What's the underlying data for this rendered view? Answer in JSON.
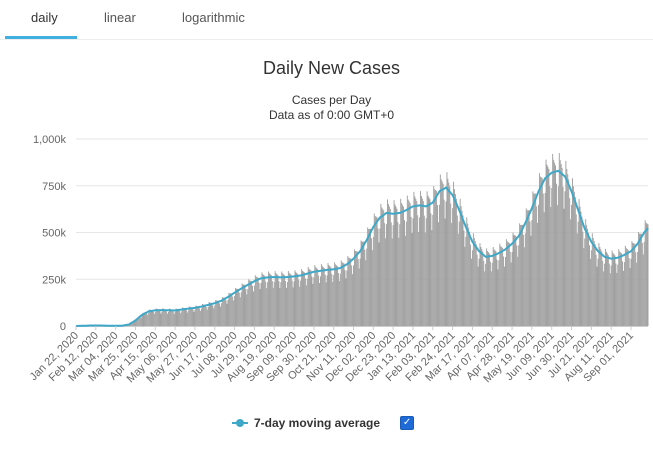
{
  "tabs": [
    {
      "label": "daily",
      "active": true
    },
    {
      "label": "linear",
      "active": false
    },
    {
      "label": "logarithmic",
      "active": false
    }
  ],
  "colors": {
    "accent": "#3fb0e0",
    "bars": "#a0a0a0",
    "line": "#3fa8c8",
    "checkbox": "#1e6ad6"
  },
  "legend": {
    "label": "7-day moving average",
    "checked": true,
    "check_glyph": "✓",
    "marker_icon": "line-dot-icon"
  },
  "chart_data": {
    "type": "bar",
    "title": "Daily New Cases",
    "subtitles": [
      "Cases per Day",
      "Data as of 0:00 GMT+0"
    ],
    "xlabel": "",
    "ylabel": "",
    "ylim": [
      0,
      1000000
    ],
    "y_ticks": [
      0,
      250000,
      500000,
      750000,
      1000000
    ],
    "y_tick_labels": [
      "0",
      "250k",
      "500k",
      "750k",
      "1,000k"
    ],
    "grid": true,
    "x_range": [
      "2020-01-22",
      "2021-09-19"
    ],
    "x_tick_labels": [
      "Jan 22, 2020",
      "Feb 12, 2020",
      "Mar 04, 2020",
      "Mar 25, 2020",
      "Apr 15, 2020",
      "May 06, 2020",
      "May 27, 2020",
      "Jun 17, 2020",
      "Jul 08, 2020",
      "Jul 29, 2020",
      "Aug 19, 2020",
      "Sep 09, 2020",
      "Sep 30, 2020",
      "Oct 21, 2020",
      "Nov 11, 2020",
      "Dec 02, 2020",
      "Dec 23, 2020",
      "Jan 13, 2021",
      "Feb 03, 2021",
      "Feb 24, 2021",
      "Mar 17, 2021",
      "Apr 07, 2021",
      "Apr 28, 2021",
      "May 19, 2021",
      "Jun 09, 2021",
      "Jun 30, 2021",
      "Jul 21, 2021",
      "Aug 11, 2021",
      "Sep 01, 2021"
    ],
    "series": [
      {
        "name": "Daily cases",
        "kind": "bar",
        "weekly_values": [
          0,
          1000,
          2500,
          3000,
          2500,
          1500,
          1000,
          2000,
          8000,
          30000,
          60000,
          78000,
          84000,
          85000,
          84000,
          83000,
          88000,
          93000,
          97000,
          104000,
          113000,
          122000,
          135000,
          155000,
          178000,
          200000,
          220000,
          240000,
          255000,
          260000,
          262000,
          260000,
          262000,
          265000,
          270000,
          280000,
          290000,
          295000,
          300000,
          303000,
          310000,
          330000,
          360000,
          400000,
          460000,
          530000,
          580000,
          605000,
          600000,
          605000,
          620000,
          640000,
          645000,
          640000,
          660000,
          720000,
          740000,
          700000,
          620000,
          530000,
          450000,
          400000,
          370000,
          375000,
          390000,
          410000,
          440000,
          480000,
          550000,
          630000,
          720000,
          790000,
          820000,
          830000,
          800000,
          720000,
          620000,
          520000,
          450000,
          400000,
          370000,
          360000,
          365000,
          380000,
          400000,
          440000,
          500000,
          540000,
          570000,
          610000,
          640000,
          650000,
          655000,
          660000,
          650000,
          640000,
          600000,
          520000
        ]
      },
      {
        "name": "7-day moving average",
        "kind": "line",
        "weekly_values": [
          0,
          1000,
          2500,
          3000,
          2500,
          1500,
          1000,
          2000,
          8000,
          30000,
          60000,
          78000,
          84000,
          85000,
          84000,
          83000,
          88000,
          93000,
          97000,
          104000,
          113000,
          122000,
          135000,
          155000,
          178000,
          200000,
          220000,
          240000,
          255000,
          260000,
          262000,
          260000,
          262000,
          265000,
          270000,
          280000,
          290000,
          295000,
          300000,
          303000,
          310000,
          330000,
          360000,
          400000,
          460000,
          530000,
          580000,
          605000,
          600000,
          605000,
          620000,
          640000,
          645000,
          640000,
          660000,
          720000,
          740000,
          700000,
          620000,
          530000,
          450000,
          400000,
          370000,
          375000,
          390000,
          410000,
          440000,
          480000,
          550000,
          630000,
          720000,
          790000,
          820000,
          830000,
          800000,
          720000,
          620000,
          520000,
          450000,
          400000,
          370000,
          360000,
          365000,
          380000,
          400000,
          440000,
          500000,
          540000,
          570000,
          610000,
          640000,
          650000,
          655000,
          660000,
          650000,
          640000,
          600000,
          520000
        ]
      }
    ]
  }
}
